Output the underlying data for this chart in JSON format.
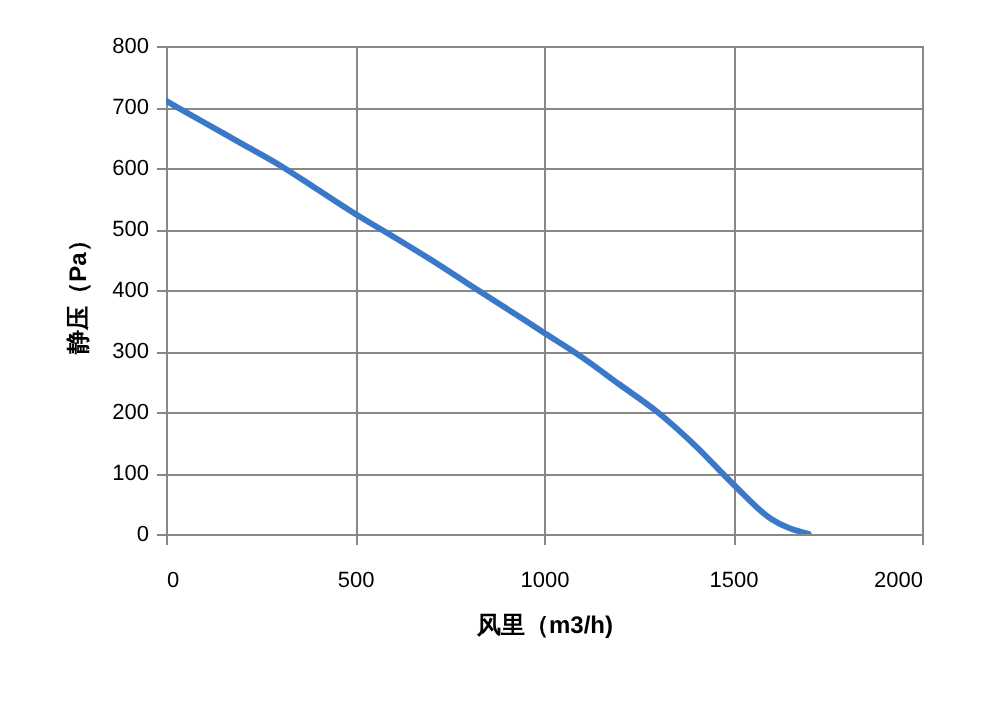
{
  "chart_data": {
    "type": "line",
    "xlabel": "风里（m3/h)",
    "ylabel": "静压（Pa）",
    "x": [
      0,
      100,
      200,
      300,
      400,
      500,
      600,
      700,
      800,
      900,
      1000,
      1100,
      1200,
      1300,
      1400,
      1500,
      1600,
      1700
    ],
    "series": [
      {
        "color": "#3a78c8",
        "values": [
          710,
          675,
          640,
          605,
          565,
          525,
          488,
          450,
          410,
          370,
          330,
          290,
          245,
          200,
          145,
          82,
          25,
          0
        ]
      }
    ],
    "xlim": [
      0,
      2000
    ],
    "xticks": [
      0,
      500,
      1000,
      1500,
      2000
    ],
    "ylim": [
      0,
      800
    ],
    "yticks": [
      0,
      100,
      200,
      300,
      400,
      500,
      600,
      700,
      800
    ],
    "grid": true,
    "legend": false,
    "marker": "none",
    "line_style": "solid"
  }
}
